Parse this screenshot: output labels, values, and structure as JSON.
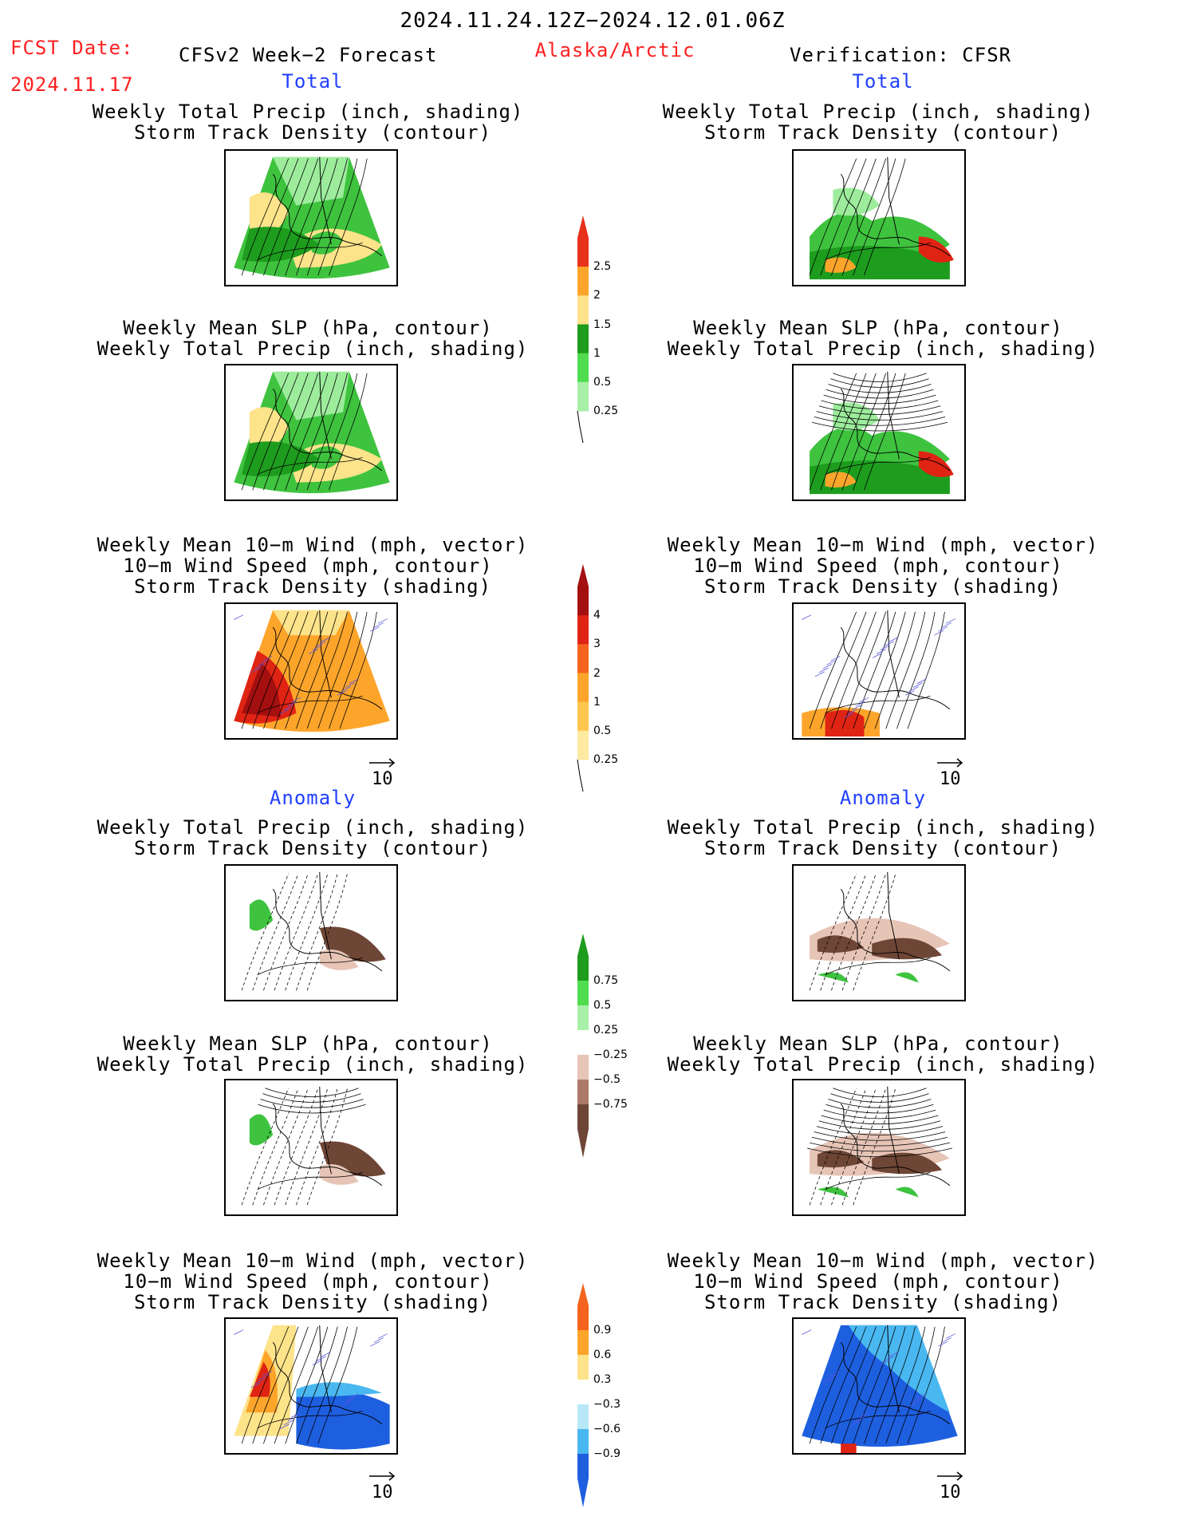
{
  "header": {
    "date_range": "2024.11.24.12Z−2024.12.01.06Z",
    "fcst_label": "FCST Date:",
    "fcst_date": "2024.11.17",
    "model": "CFSv2 Week−2 Forecast",
    "region": "Alaska/Arctic",
    "verification": "Verification: CFSR"
  },
  "sections": {
    "total_left": "Total",
    "total_right": "Total",
    "anomaly_left": "Anomaly",
    "anomaly_right": "Anomaly"
  },
  "panel_titles": {
    "precip_storm": [
      "Weekly Total Precip (inch, shading)",
      "Storm Track Density (contour)"
    ],
    "slp_precip": [
      "Weekly Mean SLP (hPa, contour)",
      "Weekly Total Precip (inch, shading)"
    ],
    "wind_storm": [
      "Weekly Mean 10−m Wind (mph, vector)",
      "10−m Wind Speed (mph, contour)",
      "Storm Track Density (shading)"
    ]
  },
  "vector_reference": "10",
  "colorbars": [
    {
      "name": "precip-total",
      "labels": [
        "2.5",
        "2",
        "1.5",
        "1",
        "0.5",
        "0.25"
      ],
      "colors": [
        "#e8311a",
        "#fda52b",
        "#fde38a",
        "#1e9c1e",
        "#4fdc4f",
        "#a8f0a8"
      ]
    },
    {
      "name": "storm-total",
      "labels": [
        "4",
        "3",
        "2",
        "1",
        "0.5",
        "0.25"
      ],
      "colors": [
        "#a40f0f",
        "#e02414",
        "#f5641e",
        "#fda52b",
        "#fdc64e",
        "#fde9a0"
      ]
    },
    {
      "name": "precip-anomaly",
      "labels": [
        "0.75",
        "0.5",
        "0.25",
        "−0.25",
        "−0.5",
        "−0.75"
      ],
      "colors": [
        "#1e9c1e",
        "#4fdc4f",
        "#a8f0a8",
        "#ffffff",
        "#e6c4b6",
        "#ad7a6a",
        "#6e4636"
      ]
    },
    {
      "name": "wind-anomaly",
      "labels": [
        "0.9",
        "0.6",
        "0.3",
        "−0.3",
        "−0.6",
        "−0.9"
      ],
      "colors": [
        "#f5641e",
        "#fda52b",
        "#fde38a",
        "#ffffff",
        "#b8e8f8",
        "#4ab8f0",
        "#1e5fe0"
      ]
    }
  ],
  "map_colors": {
    "land_green": "#3fc33f",
    "dark_green": "#1e9c1e",
    "light_green": "#9cec9c",
    "yellow": "#fde38a",
    "orange": "#fda52b",
    "red": "#e02414",
    "dark_red": "#a40f0f",
    "brown": "#6e4636",
    "tan": "#e6c4b6",
    "blue": "#1e5fe0",
    "light_blue": "#4ab8f0"
  }
}
